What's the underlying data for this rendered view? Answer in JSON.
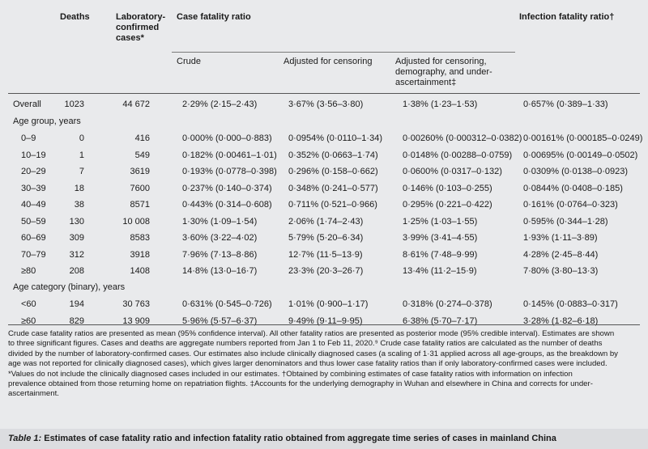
{
  "headers": {
    "deaths": "Deaths",
    "lab_cases": "Laboratory-confirmed cases*",
    "cfr": "Case fatality ratio",
    "ifr": "Infection fatality ratio†",
    "crude": "Crude",
    "adj_censoring": "Adjusted for censoring",
    "adj_full": "Adjusted for censoring, demography, and under-ascertainment‡"
  },
  "overall": {
    "label": "Overall",
    "deaths": "1023",
    "cases": "44 672",
    "crude": "2·29% (2·15–2·43)",
    "adj_c": "3·67% (3·56–3·80)",
    "adj_f": "1·38% (1·23–1·53)",
    "ifr": "0·657% (0·389–1·33)"
  },
  "age_group_label": "Age group, years",
  "age_rows": [
    {
      "label": "0–9",
      "deaths": "0",
      "cases": "416",
      "crude": "0·000% (0·000–0·883)",
      "adj_c": "0·0954% (0·0110–1·34)",
      "adj_f": "0·00260% (0·000312–0·0382)",
      "ifr": "0·00161% (0·000185–0·0249)"
    },
    {
      "label": "10–19",
      "deaths": "1",
      "cases": "549",
      "crude": "0·182% (0·00461–1·01)",
      "adj_c": "0·352% (0·0663–1·74)",
      "adj_f": "0·0148% (0·00288–0·0759)",
      "ifr": "0·00695% (0·00149–0·0502)"
    },
    {
      "label": "20–29",
      "deaths": "7",
      "cases": "3619",
      "crude": "0·193% (0·0778–0·398)",
      "adj_c": "0·296% (0·158–0·662)",
      "adj_f": "0·0600% (0·0317–0·132)",
      "ifr": "0·0309% (0·0138–0·0923)"
    },
    {
      "label": "30–39",
      "deaths": "18",
      "cases": "7600",
      "crude": "0·237% (0·140–0·374)",
      "adj_c": "0·348% (0·241–0·577)",
      "adj_f": "0·146% (0·103–0·255)",
      "ifr": "0·0844% (0·0408–0·185)"
    },
    {
      "label": "40–49",
      "deaths": "38",
      "cases": "8571",
      "crude": "0·443% (0·314–0·608)",
      "adj_c": "0·711% (0·521–0·966)",
      "adj_f": "0·295% (0·221–0·422)",
      "ifr": "0·161% (0·0764–0·323)"
    },
    {
      "label": "50–59",
      "deaths": "130",
      "cases": "10 008",
      "crude": "1·30% (1·09–1·54)",
      "adj_c": "2·06% (1·74–2·43)",
      "adj_f": "1·25% (1·03–1·55)",
      "ifr": "0·595% (0·344–1·28)"
    },
    {
      "label": "60–69",
      "deaths": "309",
      "cases": "8583",
      "crude": "3·60% (3·22–4·02)",
      "adj_c": "5·79% (5·20–6·34)",
      "adj_f": "3·99% (3·41–4·55)",
      "ifr": "1·93% (1·11–3·89)"
    },
    {
      "label": "70–79",
      "deaths": "312",
      "cases": "3918",
      "crude": "7·96% (7·13–8·86)",
      "adj_c": "12·7% (11·5–13·9)",
      "adj_f": "8·61% (7·48–9·99)",
      "ifr": "4·28% (2·45–8·44)"
    },
    {
      "label": "≥80",
      "deaths": "208",
      "cases": "1408",
      "crude": "14·8% (13·0–16·7)",
      "adj_c": "23·3% (20·3–26·7)",
      "adj_f": "13·4% (11·2–15·9)",
      "ifr": "7·80% (3·80–13·3)"
    }
  ],
  "binary_label": "Age category (binary), years",
  "binary_rows": [
    {
      "label": "<60",
      "deaths": "194",
      "cases": "30 763",
      "crude": "0·631% (0·545–0·726)",
      "adj_c": "1·01% (0·900–1·17)",
      "adj_f": "0·318% (0·274–0·378)",
      "ifr": "0·145% (0·0883–0·317)"
    },
    {
      "label": "≥60",
      "deaths": "829",
      "cases": "13 909",
      "crude": "5·96% (5·57–6·37)",
      "adj_c": "9·49% (9·11–9·95)",
      "adj_f": "6·38% (5·70–7·17)",
      "ifr": "3·28% (1·82–6·18)"
    }
  ],
  "notes": [
    "Crude case fatality ratios are presented as mean (95% confidence interval). All other fatality ratios are presented as posterior mode (95% credible interval). Estimates are shown",
    "to three significant figures. Cases and deaths are aggregate numbers reported from Jan 1 to Feb 11, 2020.⁹ Crude case fatality ratios are calculated as the number of deaths",
    "divided by the number of laboratory-confirmed cases. Our estimates also include clinically diagnosed cases (a scaling of 1·31 applied across all age-groups, as the breakdown by",
    "age was not reported for clinically diagnosed cases), which gives larger denominators and thus lower case fatality ratios than if only laboratory-confirmed cases were included.",
    "*Values do not include the clinically diagnosed cases included in our estimates. †Obtained by combining estimates of case fatality ratios with information on infection",
    "prevalence obtained from those returning home on repatriation flights. ‡Accounts for the underlying demography in Wuhan and elsewhere in China and corrects for under-",
    "ascertainment."
  ],
  "caption": {
    "label": "Table 1:",
    "text": " Estimates of case fatality ratio and infection fatality ratio obtained from aggregate time series of cases in mainland China"
  }
}
